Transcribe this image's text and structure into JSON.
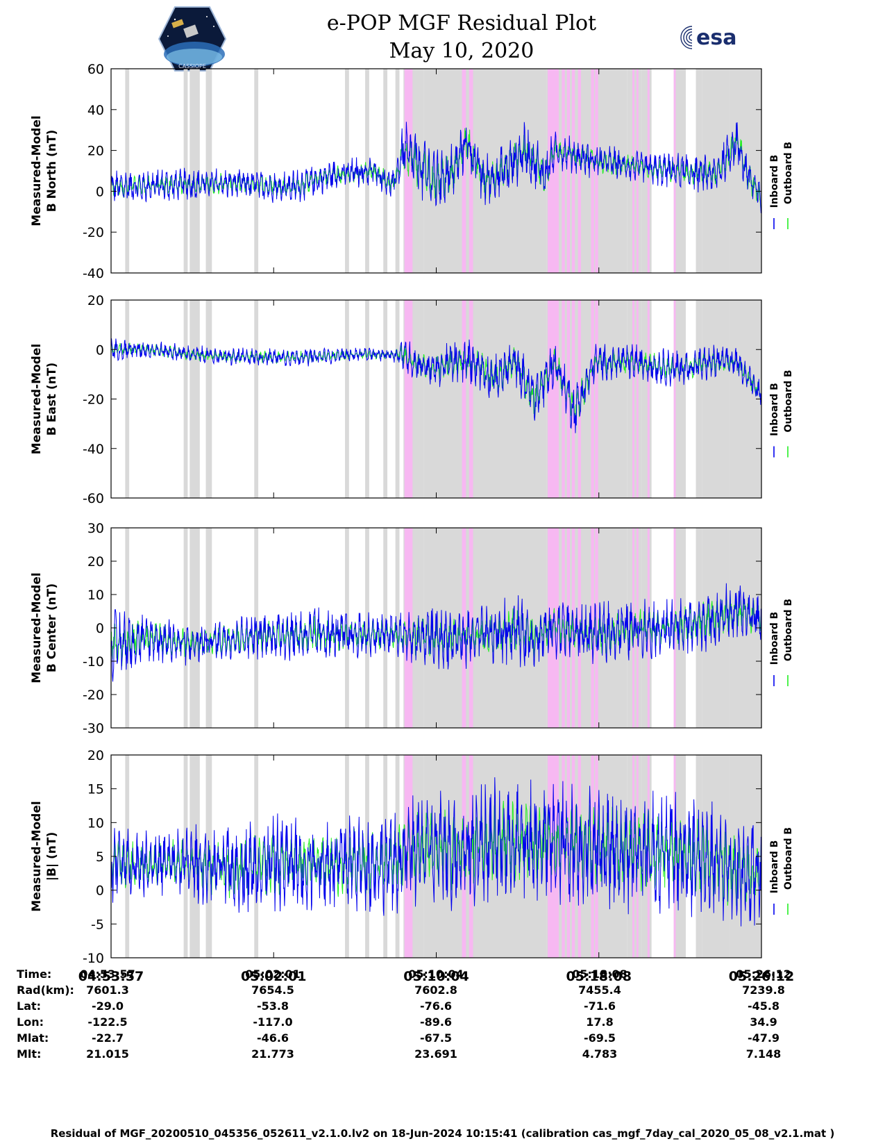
{
  "header": {
    "title_line1": "e-POP MGF Residual Plot",
    "title_line2": "May 10, 2020",
    "logo_left": "CASSIOPE",
    "logo_right": "esa"
  },
  "colors": {
    "inboard": "#0000ee",
    "outboard": "#22ee22",
    "gray_band": "#d9d9d9",
    "pink_band": "#f7b8f2"
  },
  "chart_data": {
    "type": "line",
    "x_range_min": [
      0,
      32.25
    ],
    "x_tick_labels": [
      "04:53:57",
      "05:02:01",
      "05:10:04",
      "05:18:08",
      "05:26:12"
    ],
    "legend": [
      "Inboard B",
      "Outboard B"
    ],
    "gray_intervals_min": [
      [
        0.7,
        0.9
      ],
      [
        3.6,
        3.8
      ],
      [
        3.9,
        4.4
      ],
      [
        4.7,
        5.0
      ],
      [
        7.1,
        7.3
      ],
      [
        11.6,
        11.8
      ],
      [
        12.6,
        12.8
      ],
      [
        13.5,
        13.7
      ],
      [
        14.1,
        14.3
      ],
      [
        14.5,
        15.5
      ],
      [
        15.5,
        21.6
      ],
      [
        21.6,
        22.4
      ],
      [
        22.4,
        25.6
      ],
      [
        25.6,
        26.3
      ],
      [
        26.3,
        26.8
      ],
      [
        27.9,
        28.5
      ],
      [
        29.0,
        29.3
      ],
      [
        29.3,
        30.7
      ],
      [
        30.7,
        32.25
      ]
    ],
    "pink_intervals_min": [
      [
        14.55,
        14.95
      ],
      [
        17.4,
        17.6
      ],
      [
        17.75,
        17.95
      ],
      [
        21.65,
        22.05
      ],
      [
        22.05,
        22.2
      ],
      [
        22.35,
        22.5
      ],
      [
        22.6,
        22.75
      ],
      [
        22.85,
        23.0
      ],
      [
        23.15,
        23.3
      ],
      [
        23.8,
        23.95
      ],
      [
        24.0,
        24.15
      ],
      [
        25.85,
        25.95
      ],
      [
        26.05,
        26.15
      ],
      [
        26.6,
        26.7
      ],
      [
        27.9,
        28.0
      ]
    ],
    "panels": [
      {
        "ylabel_line1": "Measured-Model",
        "ylabel_line2": "B North (nT)",
        "ylim": [
          -40,
          60
        ],
        "yticks": [
          -40,
          -20,
          0,
          20,
          40,
          60
        ],
        "envelope": {
          "t": [
            0,
            3,
            6,
            9,
            11,
            13,
            14,
            14.5,
            15,
            16,
            17,
            17.6,
            18.5,
            19.5,
            20.5,
            21.5,
            22,
            24,
            26,
            28,
            30,
            31,
            31.5,
            32.25
          ],
          "mean": [
            2,
            3,
            4,
            2,
            8,
            10,
            3,
            20,
            15,
            5,
            10,
            25,
            5,
            10,
            20,
            8,
            20,
            15,
            12,
            10,
            8,
            25,
            10,
            -5
          ],
          "amp": [
            9,
            9,
            8,
            9,
            8,
            8,
            8,
            15,
            18,
            18,
            15,
            15,
            15,
            15,
            15,
            15,
            10,
            10,
            8,
            10,
            10,
            15,
            12,
            10
          ]
        }
      },
      {
        "ylabel_line1": "Measured-Model",
        "ylabel_line2": "B East (nT)",
        "ylim": [
          -60,
          20
        ],
        "yticks": [
          -60,
          -40,
          -20,
          0,
          20
        ],
        "envelope": {
          "t": [
            0,
            2,
            4,
            6,
            8,
            10,
            12,
            14,
            14.5,
            15,
            16,
            17,
            18,
            19,
            20,
            21,
            22,
            23,
            24,
            25,
            26,
            28,
            30,
            31,
            32.25
          ],
          "mean": [
            0,
            0,
            -2,
            -3,
            -3,
            -3,
            -2,
            -2,
            -2,
            -5,
            -8,
            -5,
            -5,
            -12,
            -5,
            -20,
            -5,
            -25,
            -5,
            -5,
            -5,
            -8,
            -5,
            -5,
            -18
          ],
          "amp": [
            5,
            4,
            4,
            4,
            4,
            4,
            3,
            3,
            8,
            8,
            8,
            10,
            10,
            12,
            10,
            12,
            10,
            12,
            8,
            8,
            8,
            8,
            8,
            6,
            6
          ]
        }
      },
      {
        "ylabel_line1": "Measured-Model",
        "ylabel_line2": "B Center (nT)",
        "ylim": [
          -30,
          30
        ],
        "yticks": [
          -30,
          -20,
          -10,
          0,
          10,
          20,
          30
        ],
        "envelope": {
          "t": [
            0,
            2,
            4,
            6,
            8,
            10,
            12,
            14,
            15,
            17,
            19,
            20,
            21,
            22,
            24,
            26,
            28,
            30,
            31,
            32.25
          ],
          "mean": [
            -5,
            -3,
            -5,
            -3,
            -2,
            -2,
            -2,
            -2,
            -3,
            -3,
            -2,
            0,
            -3,
            0,
            -2,
            0,
            0,
            3,
            5,
            3
          ],
          "amp": [
            12,
            8,
            7,
            7,
            8,
            9,
            8,
            7,
            10,
            10,
            10,
            12,
            10,
            10,
            10,
            10,
            10,
            10,
            10,
            8
          ]
        }
      },
      {
        "ylabel_line1": "Measured-Model",
        "ylabel_line2": "|B| (nT)",
        "ylim": [
          -10,
          20
        ],
        "yticks": [
          -10,
          -5,
          0,
          5,
          10,
          15,
          20
        ],
        "envelope": {
          "t": [
            0,
            2,
            4,
            6,
            8,
            10,
            12,
            14,
            15,
            17,
            19,
            21,
            23,
            25,
            27,
            29,
            31,
            32.25
          ],
          "mean": [
            4,
            4,
            4,
            3,
            4,
            4,
            4,
            4,
            6,
            6,
            7,
            7,
            7,
            6,
            6,
            5,
            3,
            2
          ],
          "amp": [
            7,
            5,
            6,
            7,
            8,
            8,
            8,
            8,
            9,
            10,
            10,
            10,
            10,
            10,
            10,
            10,
            9,
            9
          ]
        }
      }
    ]
  },
  "orbit_info": {
    "row_labels": [
      "Time:",
      "Rad(km):",
      "Lat:",
      "Lon:",
      "Mlat:",
      "Mlt:"
    ],
    "columns": [
      [
        "04:53:57",
        "7601.3",
        "-29.0",
        "-122.5",
        "-22.7",
        "21.015"
      ],
      [
        "05:02:01",
        "7654.5",
        "-53.8",
        "-117.0",
        "-46.6",
        "21.773"
      ],
      [
        "05:10:04",
        "7602.8",
        "-76.6",
        "-89.6",
        "-67.5",
        "23.691"
      ],
      [
        "05:18:08",
        "7455.4",
        "-71.6",
        "17.8",
        "-69.5",
        "4.783"
      ],
      [
        "05:26:12",
        "7239.8",
        "-45.8",
        "34.9",
        "-47.9",
        "7.148"
      ]
    ]
  },
  "footer": "Residual of MGF_20200510_045356_052611_v2.1.0.lv2 on 18-Jun-2024 10:15:41 (calibration cas_mgf_7day_cal_2020_05_08_v2.1.mat )"
}
